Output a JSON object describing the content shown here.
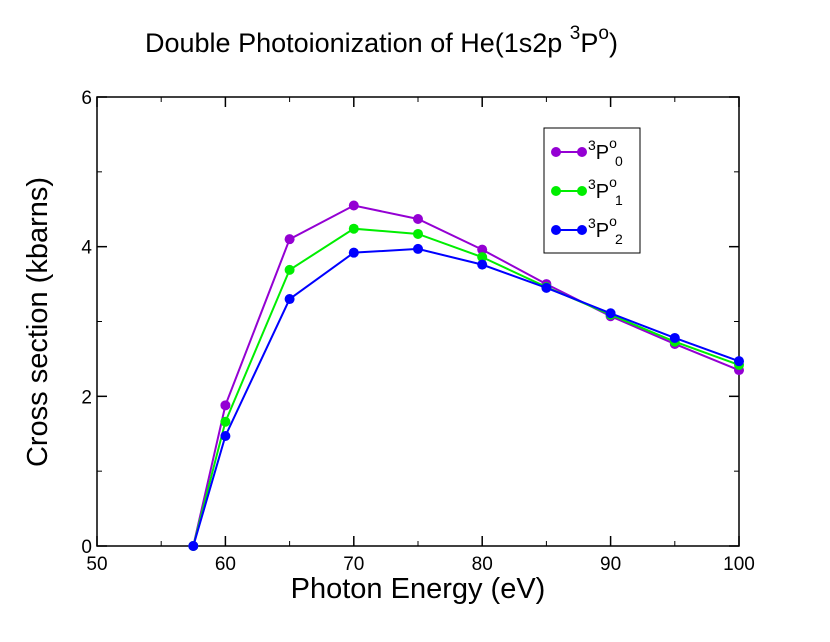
{
  "chart_data": {
    "type": "line",
    "title": {
      "main": "Double Photoionization of He(1s2p ",
      "sup_pre": "3",
      "letter": "P",
      "sup_post": "o",
      "close": ")"
    },
    "xlabel": "Photon Energy (eV)",
    "ylabel": "Cross section (kbarns)",
    "xlim": [
      50,
      100
    ],
    "ylim": [
      0,
      6
    ],
    "xticks": [
      50,
      60,
      70,
      80,
      90,
      100
    ],
    "yticks": [
      0,
      2,
      4,
      6
    ],
    "x": [
      57.5,
      60,
      65,
      70,
      75,
      80,
      85,
      90,
      95,
      100
    ],
    "series": [
      {
        "name": "3Po0",
        "sup_pre": "3",
        "letter": "P",
        "sup_post": "o",
        "sub": "0",
        "color": "#9400d3",
        "values": [
          0,
          1.88,
          4.1,
          4.55,
          4.37,
          3.96,
          3.5,
          3.07,
          2.7,
          2.35
        ]
      },
      {
        "name": "3Po1",
        "sup_pre": "3",
        "letter": "P",
        "sup_post": "o",
        "sub": "1",
        "color": "#00ee00",
        "values": [
          0,
          1.66,
          3.69,
          4.24,
          4.17,
          3.86,
          3.46,
          3.09,
          2.73,
          2.42
        ]
      },
      {
        "name": "3Po2",
        "sup_pre": "3",
        "letter": "P",
        "sup_post": "o",
        "sub": "2",
        "color": "#0000ff",
        "values": [
          0,
          1.47,
          3.3,
          3.92,
          3.97,
          3.76,
          3.45,
          3.11,
          2.78,
          2.47
        ]
      }
    ],
    "legend_position": "top-right",
    "grid": false
  }
}
